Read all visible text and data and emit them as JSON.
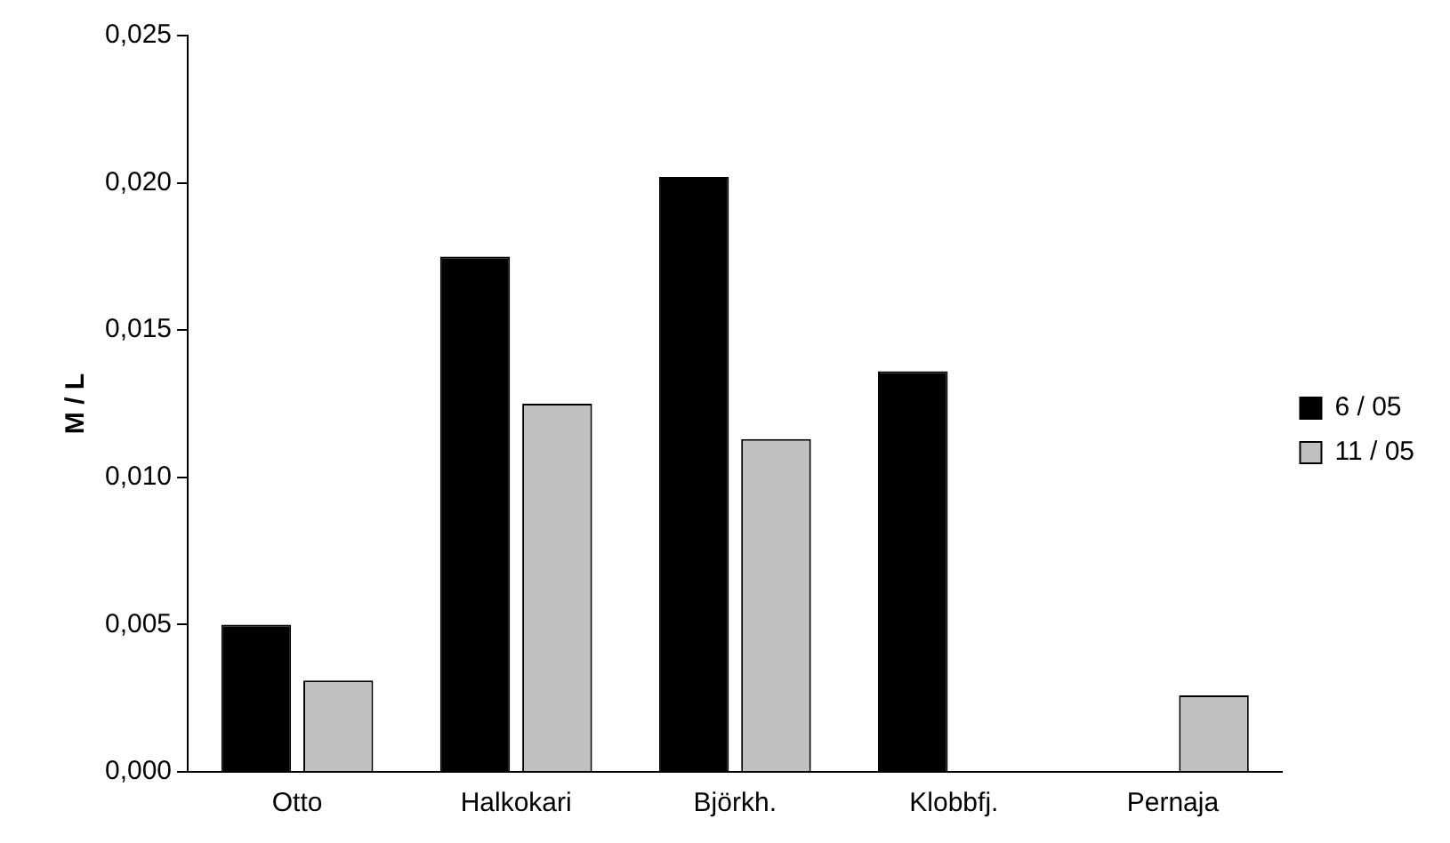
{
  "chart_data": {
    "type": "bar",
    "ylabel": "M / L",
    "categories": [
      "Otto",
      "Halkokari",
      "Björkh.",
      "Klobbfj.",
      "Pernaja"
    ],
    "series": [
      {
        "name": "6 / 05",
        "color": "#000000",
        "values": [
          0.005,
          0.0175,
          0.0202,
          0.0136,
          null
        ]
      },
      {
        "name": "11 / 05",
        "color": "#c0c0c0",
        "values": [
          0.0031,
          0.0125,
          0.0113,
          null,
          0.0026
        ]
      }
    ],
    "ylim": [
      0,
      0.025
    ],
    "yticks": [
      {
        "value": 0,
        "label": "0,000"
      },
      {
        "value": 0.005,
        "label": "0,005"
      },
      {
        "value": 0.01,
        "label": "0,010"
      },
      {
        "value": 0.015,
        "label": "0,015"
      },
      {
        "value": 0.02,
        "label": "0,020"
      },
      {
        "value": 0.025,
        "label": "0,025"
      }
    ],
    "grid": false,
    "legend": "right"
  }
}
